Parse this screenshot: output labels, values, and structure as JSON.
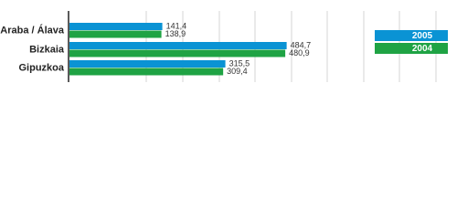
{
  "chart_data": {
    "type": "hbar",
    "categories": [
      "Araba / Álava",
      "Bizkaia",
      "Gipuzkoa"
    ],
    "series": [
      {
        "name": "2005",
        "color": "#0a93d4",
        "values": [
          141.4,
          484.7,
          315.5
        ],
        "value_labels": [
          "141,4",
          "484,7",
          "315,5"
        ]
      },
      {
        "name": "2004",
        "color": "#1fa344",
        "values": [
          138.9,
          480.9,
          309.4
        ],
        "value_labels": [
          "138,9",
          "480,9",
          "309,4"
        ]
      }
    ],
    "xlim": [
      -115,
      945
    ]
  }
}
